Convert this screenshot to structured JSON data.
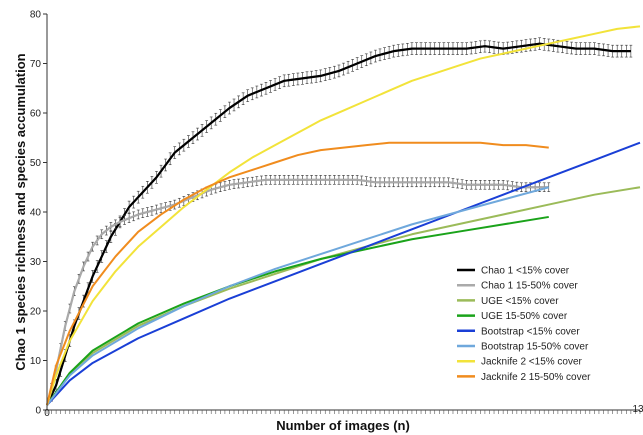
{
  "chart_data": {
    "type": "line",
    "title": "",
    "xlabel": "Number of images (n)",
    "ylabel": "Chao 1 species richness and species accumulation",
    "xlim": [
      0,
      130
    ],
    "ylim": [
      0,
      80
    ],
    "y_ticks": [
      0,
      10,
      20,
      30,
      40,
      50,
      60,
      70,
      80
    ],
    "x_tick_labels": [
      "0",
      "13"
    ],
    "legend_position": "right",
    "series": [
      {
        "name": "Chao 1 <15% cover",
        "color": "#000000",
        "error_bars": true,
        "x": [
          0,
          2,
          4,
          6,
          8,
          10,
          12,
          14,
          16,
          18,
          20,
          24,
          28,
          32,
          36,
          40,
          44,
          48,
          52,
          56,
          60,
          64,
          68,
          72,
          76,
          80,
          84,
          88,
          92,
          96,
          100,
          104,
          108,
          112,
          116,
          120,
          124,
          128
        ],
        "y": [
          1,
          5,
          11,
          17,
          22,
          27,
          31,
          35,
          38,
          41,
          43,
          47,
          52,
          55,
          58,
          61,
          63.5,
          65,
          66.5,
          67,
          67.5,
          68.5,
          70,
          71.5,
          72.5,
          73,
          73,
          73,
          73,
          73.5,
          73,
          73.5,
          74,
          73.5,
          73,
          73,
          72.5,
          72.5
        ]
      },
      {
        "name": "Chao 1 15-50% cover",
        "color": "#aaaaaa",
        "error_bars": true,
        "x": [
          0,
          2,
          4,
          6,
          8,
          10,
          12,
          14,
          16,
          20,
          24,
          28,
          32,
          36,
          40,
          44,
          48,
          52,
          56,
          60,
          64,
          68,
          72,
          76,
          80,
          84,
          88,
          92,
          96,
          100,
          104,
          108,
          110
        ],
        "y": [
          1,
          8,
          17,
          24,
          29,
          33,
          35.5,
          37,
          38,
          39.5,
          40.5,
          41.5,
          43,
          44.5,
          45.5,
          46,
          46.5,
          46.5,
          46.5,
          46.5,
          46.5,
          46.5,
          46,
          46,
          46,
          46,
          46,
          45.5,
          45.5,
          45.5,
          45,
          45,
          45
        ]
      },
      {
        "name": "UGE <15% cover",
        "color": "#9bbb59",
        "error_bars": false,
        "x": [
          0,
          5,
          10,
          20,
          30,
          40,
          50,
          60,
          70,
          80,
          90,
          100,
          110,
          120,
          130
        ],
        "y": [
          1,
          7.5,
          11.5,
          17,
          21,
          24.5,
          27.5,
          30.5,
          33,
          35.5,
          37.5,
          39.5,
          41.5,
          43.5,
          45
        ]
      },
      {
        "name": "UGE 15-50% cover",
        "color": "#1aa31a",
        "error_bars": false,
        "x": [
          0,
          5,
          10,
          20,
          30,
          40,
          50,
          60,
          70,
          80,
          90,
          100,
          110
        ],
        "y": [
          1,
          7.5,
          12,
          17.5,
          21.5,
          25,
          28,
          30.5,
          32.5,
          34.5,
          36,
          37.5,
          39
        ]
      },
      {
        "name": "Bootstrap <15% cover",
        "color": "#1a3fd6",
        "error_bars": false,
        "x": [
          0,
          5,
          10,
          20,
          30,
          40,
          50,
          60,
          70,
          80,
          90,
          100,
          110,
          120,
          130
        ],
        "y": [
          1,
          6,
          9.5,
          14.5,
          18.5,
          22.5,
          26,
          29.5,
          33,
          36.5,
          40,
          43.5,
          47,
          50.5,
          54
        ]
      },
      {
        "name": "Bootstrap 15-50% cover",
        "color": "#6fa8dc",
        "error_bars": false,
        "x": [
          0,
          5,
          10,
          20,
          30,
          40,
          50,
          60,
          70,
          80,
          90,
          100,
          110
        ],
        "y": [
          1,
          7,
          11,
          16.5,
          21,
          25,
          28.5,
          31.5,
          34.5,
          37.5,
          40,
          42.5,
          45
        ]
      },
      {
        "name": "Jacknife 2 <15% cover",
        "color": "#f2e33a",
        "error_bars": false,
        "x": [
          0,
          2,
          5,
          10,
          15,
          20,
          25,
          30,
          35,
          40,
          45,
          50,
          55,
          60,
          65,
          70,
          75,
          80,
          85,
          90,
          95,
          100,
          105,
          110,
          115,
          120,
          125,
          130
        ],
        "y": [
          1,
          7,
          14,
          22,
          28,
          33,
          37,
          41,
          44.5,
          48,
          51,
          53.5,
          56,
          58.5,
          60.5,
          62.5,
          64.5,
          66.5,
          68,
          69.5,
          71,
          72,
          73,
          74,
          75,
          76,
          77,
          77.5
        ]
      },
      {
        "name": "Jacknife 2 15-50% cover",
        "color": "#f08c1e",
        "error_bars": false,
        "x": [
          0,
          2,
          5,
          10,
          15,
          20,
          25,
          30,
          35,
          40,
          45,
          50,
          55,
          60,
          65,
          70,
          75,
          80,
          85,
          90,
          95,
          100,
          105,
          110
        ],
        "y": [
          1,
          9,
          16,
          25,
          31,
          36,
          39.5,
          42.5,
          45,
          47,
          48.5,
          50,
          51.5,
          52.5,
          53,
          53.5,
          54,
          54,
          54,
          54,
          54,
          53.5,
          53.5,
          53
        ]
      }
    ]
  }
}
